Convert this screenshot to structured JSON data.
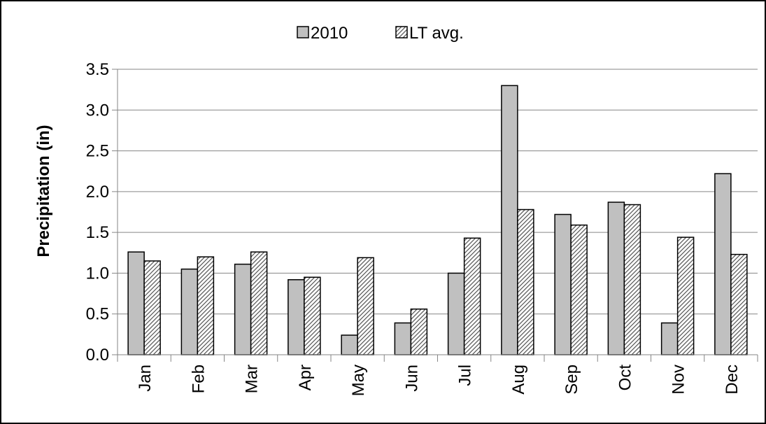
{
  "chart_data": {
    "type": "bar",
    "title": "",
    "xlabel": "",
    "ylabel": "Precipitation (in)",
    "ylim": [
      0,
      3.5
    ],
    "ytick_step": 0.5,
    "yticks": [
      "0.0",
      "0.5",
      "1.0",
      "1.5",
      "2.0",
      "2.5",
      "3.0",
      "3.5"
    ],
    "grid": true,
    "legend_position": "top-center",
    "categories": [
      "Jan",
      "Feb",
      "Mar",
      "Apr",
      "May",
      "Jun",
      "Jul",
      "Aug",
      "Sep",
      "Oct",
      "Nov",
      "Dec"
    ],
    "series": [
      {
        "name": "2010",
        "style": "solid",
        "color": "#c0c0c0",
        "values": [
          1.26,
          1.05,
          1.11,
          0.92,
          0.24,
          0.39,
          1.0,
          3.3,
          1.72,
          1.87,
          0.39,
          2.22
        ]
      },
      {
        "name": "LT avg.",
        "style": "hatched",
        "color": "#ffffff",
        "values": [
          1.15,
          1.2,
          1.26,
          0.95,
          1.19,
          0.56,
          1.43,
          1.78,
          1.59,
          1.84,
          1.44,
          1.23
        ]
      }
    ]
  }
}
